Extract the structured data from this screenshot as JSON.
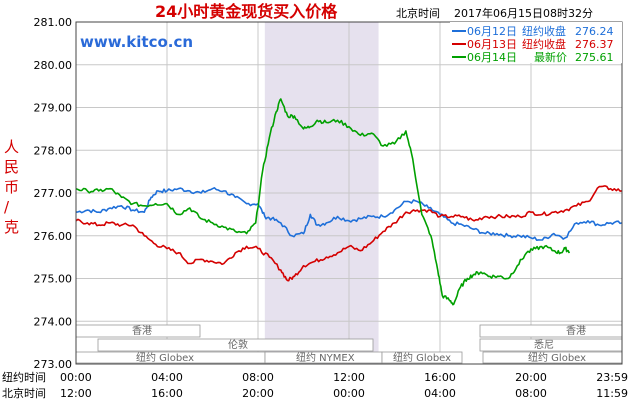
{
  "header": {
    "title": "24小时黄金现货买入价格",
    "timestamp": "北京时间    2017年06月15日08时32分",
    "watermark": "www.kitco.cn"
  },
  "legend": [
    {
      "label": "06月12日",
      "desc": "纽约收盘",
      "value": "276.24",
      "color": "#1e6fd9"
    },
    {
      "label": "06月13日",
      "desc": "纽约收盘",
      "value": "276.37",
      "color": "#d40000"
    },
    {
      "label": "06月14日",
      "desc": "最新价",
      "value": "275.61",
      "color": "#00a000"
    }
  ],
  "ylabel": "人民币/克",
  "sessions": [
    {
      "label": "香港"
    },
    {
      "label": "伦敦"
    },
    {
      "label": "纽约 Globex"
    },
    {
      "label": "纽约 NYMEX"
    },
    {
      "label": "纽约 Globex"
    },
    {
      "label": "香港"
    },
    {
      "label": "悉尼"
    },
    {
      "label": "纽约 Globex"
    }
  ],
  "xaxis": {
    "row1_title": "纽约时间",
    "row2_title": "北京时间",
    "row1": [
      "00:00",
      "04:00",
      "08:00",
      "12:00",
      "16:00",
      "20:00",
      "23:59"
    ],
    "row2": [
      "12:00",
      "16:00",
      "20:00",
      "00:00",
      "04:00",
      "08:00",
      "11:59"
    ]
  },
  "chart_data": {
    "type": "line",
    "title": "24小时黄金现货买入价格",
    "ylabel": "人民币/克",
    "ylim": [
      273.0,
      281.0
    ],
    "yticks": [
      "273.00",
      "274.00",
      "275.00",
      "276.00",
      "277.00",
      "278.00",
      "279.00",
      "280.00",
      "281.00"
    ],
    "x_unit": "hours since 00:00 New York time",
    "xlim": [
      0,
      24
    ],
    "nymex_shade_hours": [
      8.3,
      13.3
    ],
    "series": [
      {
        "name": "06月12日",
        "color": "#1e6fd9",
        "points": [
          [
            0,
            276.55
          ],
          [
            0.5,
            276.6
          ],
          [
            1,
            276.55
          ],
          [
            1.5,
            276.65
          ],
          [
            2,
            276.7
          ],
          [
            2.5,
            276.6
          ],
          [
            3,
            276.55
          ],
          [
            3.3,
            276.9
          ],
          [
            3.6,
            277.05
          ],
          [
            4,
            277.05
          ],
          [
            4.5,
            277.1
          ],
          [
            5,
            277.05
          ],
          [
            5.5,
            277.0
          ],
          [
            6,
            277.1
          ],
          [
            6.5,
            277.05
          ],
          [
            7,
            276.9
          ],
          [
            7.5,
            276.75
          ],
          [
            8,
            276.75
          ],
          [
            8.3,
            276.45
          ],
          [
            8.6,
            276.4
          ],
          [
            9,
            276.3
          ],
          [
            9.5,
            276.0
          ],
          [
            10,
            276.05
          ],
          [
            10.3,
            276.5
          ],
          [
            10.6,
            276.25
          ],
          [
            11,
            276.3
          ],
          [
            11.5,
            276.45
          ],
          [
            12,
            276.35
          ],
          [
            12.5,
            276.4
          ],
          [
            13,
            276.45
          ],
          [
            13.5,
            276.45
          ],
          [
            14,
            276.6
          ],
          [
            14.5,
            276.8
          ],
          [
            15,
            276.8
          ],
          [
            15.5,
            276.65
          ],
          [
            16,
            276.5
          ],
          [
            16.5,
            276.3
          ],
          [
            17,
            276.25
          ],
          [
            17.5,
            276.15
          ],
          [
            18,
            276.05
          ],
          [
            18.5,
            276.05
          ],
          [
            19,
            276.0
          ],
          [
            19.5,
            276.0
          ],
          [
            20,
            275.95
          ],
          [
            20.5,
            275.9
          ],
          [
            21,
            276.05
          ],
          [
            21.5,
            275.95
          ],
          [
            22,
            276.3
          ],
          [
            22.5,
            276.35
          ],
          [
            23,
            276.25
          ],
          [
            23.5,
            276.3
          ],
          [
            24,
            276.3
          ]
        ]
      },
      {
        "name": "06月13日",
        "color": "#d40000",
        "points": [
          [
            0,
            276.35
          ],
          [
            0.5,
            276.3
          ],
          [
            1,
            276.25
          ],
          [
            1.5,
            276.3
          ],
          [
            2,
            276.25
          ],
          [
            2.5,
            276.25
          ],
          [
            3,
            276.0
          ],
          [
            3.5,
            275.8
          ],
          [
            4,
            275.7
          ],
          [
            4.5,
            275.6
          ],
          [
            5,
            275.35
          ],
          [
            5.5,
            275.45
          ],
          [
            6,
            275.4
          ],
          [
            6.5,
            275.35
          ],
          [
            7,
            275.6
          ],
          [
            7.5,
            275.75
          ],
          [
            8,
            275.7
          ],
          [
            8.5,
            275.5
          ],
          [
            9,
            275.2
          ],
          [
            9.3,
            274.95
          ],
          [
            9.6,
            275.05
          ],
          [
            10,
            275.3
          ],
          [
            10.5,
            275.4
          ],
          [
            11,
            275.5
          ],
          [
            11.5,
            275.6
          ],
          [
            12,
            275.75
          ],
          [
            12.5,
            275.65
          ],
          [
            13,
            275.85
          ],
          [
            13.5,
            276.1
          ],
          [
            14,
            276.3
          ],
          [
            14.5,
            276.55
          ],
          [
            15,
            276.6
          ],
          [
            15.5,
            276.6
          ],
          [
            16,
            276.45
          ],
          [
            16.5,
            276.45
          ],
          [
            17,
            276.45
          ],
          [
            17.5,
            276.35
          ],
          [
            18,
            276.45
          ],
          [
            18.5,
            276.45
          ],
          [
            19,
            276.45
          ],
          [
            19.5,
            276.45
          ],
          [
            20,
            276.55
          ],
          [
            20.5,
            276.5
          ],
          [
            21,
            276.55
          ],
          [
            21.5,
            276.6
          ],
          [
            22,
            276.7
          ],
          [
            22.5,
            276.8
          ],
          [
            23,
            277.15
          ],
          [
            23.5,
            277.1
          ],
          [
            24,
            277.05
          ]
        ]
      },
      {
        "name": "06月14日",
        "color": "#00a000",
        "points": [
          [
            0,
            277.1
          ],
          [
            0.5,
            277.05
          ],
          [
            1,
            277.05
          ],
          [
            1.5,
            277.1
          ],
          [
            2,
            276.9
          ],
          [
            2.5,
            276.75
          ],
          [
            3,
            276.7
          ],
          [
            3.5,
            276.75
          ],
          [
            4,
            276.75
          ],
          [
            4.5,
            276.5
          ],
          [
            5,
            276.65
          ],
          [
            5.5,
            276.4
          ],
          [
            6,
            276.3
          ],
          [
            6.5,
            276.2
          ],
          [
            7,
            276.1
          ],
          [
            7.5,
            276.05
          ],
          [
            7.9,
            276.3
          ],
          [
            8.2,
            277.5
          ],
          [
            8.5,
            278.3
          ],
          [
            8.8,
            278.9
          ],
          [
            9,
            279.2
          ],
          [
            9.3,
            278.8
          ],
          [
            9.6,
            278.8
          ],
          [
            10,
            278.5
          ],
          [
            10.3,
            278.55
          ],
          [
            10.6,
            278.7
          ],
          [
            11,
            278.65
          ],
          [
            11.5,
            278.7
          ],
          [
            12,
            278.55
          ],
          [
            12.5,
            278.35
          ],
          [
            13,
            278.4
          ],
          [
            13.5,
            278.1
          ],
          [
            14,
            278.15
          ],
          [
            14.5,
            278.45
          ],
          [
            14.8,
            277.8
          ],
          [
            15.2,
            276.5
          ],
          [
            15.6,
            276.0
          ],
          [
            15.9,
            275.2
          ],
          [
            16.1,
            274.6
          ],
          [
            16.4,
            274.5
          ],
          [
            16.6,
            274.4
          ],
          [
            16.9,
            274.8
          ],
          [
            17.2,
            275.0
          ],
          [
            17.5,
            275.1
          ],
          [
            17.8,
            275.15
          ],
          [
            18.2,
            275.05
          ],
          [
            18.6,
            275.05
          ],
          [
            19,
            275.0
          ],
          [
            19.4,
            275.3
          ],
          [
            19.8,
            275.6
          ],
          [
            20.2,
            275.7
          ],
          [
            20.6,
            275.75
          ],
          [
            21,
            275.65
          ],
          [
            21.3,
            275.6
          ],
          [
            21.5,
            275.7
          ],
          [
            21.7,
            275.62
          ]
        ]
      }
    ]
  }
}
